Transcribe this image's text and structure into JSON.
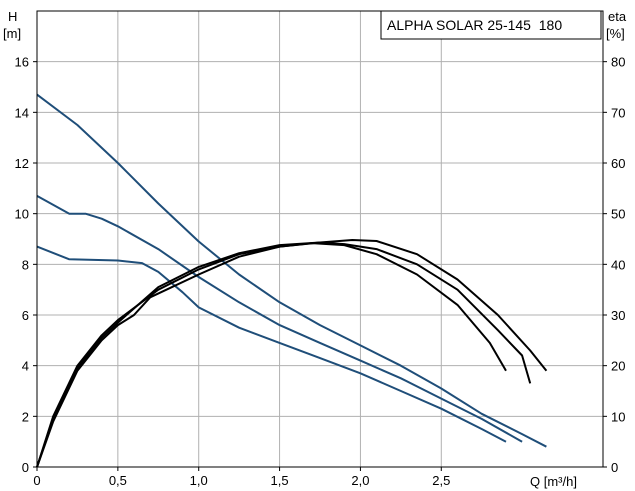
{
  "chart_data": {
    "type": "line",
    "title": "ALPHA SOLAR 25-145  180",
    "left_axis": {
      "label_line1": "H",
      "label_line2": "[m]",
      "range": [
        0,
        18
      ],
      "ticks": [
        0,
        2,
        4,
        6,
        8,
        10,
        12,
        14,
        16
      ]
    },
    "right_axis": {
      "label_line1": "eta",
      "label_line2": "[%]",
      "range": [
        0,
        90
      ],
      "ticks": [
        0,
        10,
        20,
        30,
        40,
        50,
        60,
        70,
        80
      ]
    },
    "x_axis": {
      "label": "Q [m³/h]",
      "range": [
        0,
        3.5
      ],
      "ticks": [
        0,
        0.5,
        1.0,
        1.5,
        2.0,
        2.5
      ],
      "tick_labels": [
        "0",
        "0,5",
        "1,0",
        "1,5",
        "2,0",
        "2,5"
      ]
    },
    "grid": true,
    "colors": {
      "head_curves": "#1f4e79",
      "efficiency_curves": "#000000",
      "grid": "#b0b0b0"
    },
    "head_series": [
      {
        "axis": "left",
        "points": [
          [
            0,
            14.7
          ],
          [
            0.25,
            13.5
          ],
          [
            0.5,
            12.0
          ],
          [
            0.75,
            10.4
          ],
          [
            1.0,
            8.9
          ],
          [
            1.25,
            7.6
          ],
          [
            1.5,
            6.5
          ],
          [
            1.75,
            5.6
          ],
          [
            2.0,
            4.8
          ],
          [
            2.25,
            4.0
          ],
          [
            2.5,
            3.1
          ],
          [
            2.75,
            2.1
          ],
          [
            3.0,
            1.3
          ],
          [
            3.15,
            0.8
          ]
        ]
      },
      {
        "axis": "left",
        "points": [
          [
            0,
            10.7
          ],
          [
            0.2,
            10.0
          ],
          [
            0.3,
            10.0
          ],
          [
            0.4,
            9.8
          ],
          [
            0.5,
            9.5
          ],
          [
            0.75,
            8.6
          ],
          [
            1.0,
            7.5
          ],
          [
            1.25,
            6.5
          ],
          [
            1.5,
            5.6
          ],
          [
            1.75,
            4.9
          ],
          [
            2.0,
            4.2
          ],
          [
            2.25,
            3.5
          ],
          [
            2.5,
            2.7
          ],
          [
            2.75,
            1.9
          ],
          [
            3.0,
            1.0
          ]
        ]
      },
      {
        "axis": "left",
        "points": [
          [
            0,
            8.7
          ],
          [
            0.2,
            8.2
          ],
          [
            0.5,
            8.15
          ],
          [
            0.65,
            8.05
          ],
          [
            0.75,
            7.7
          ],
          [
            0.9,
            6.9
          ],
          [
            1.0,
            6.3
          ],
          [
            1.25,
            5.5
          ],
          [
            1.5,
            4.9
          ],
          [
            1.75,
            4.3
          ],
          [
            2.0,
            3.7
          ],
          [
            2.25,
            3.0
          ],
          [
            2.5,
            2.3
          ],
          [
            2.75,
            1.5
          ],
          [
            2.9,
            1.0
          ]
        ]
      }
    ],
    "efficiency_series": [
      {
        "axis": "right",
        "points": [
          [
            0,
            0
          ],
          [
            0.1,
            10
          ],
          [
            0.25,
            20
          ],
          [
            0.4,
            26
          ],
          [
            0.5,
            29
          ],
          [
            0.75,
            35
          ],
          [
            1.0,
            39
          ],
          [
            1.25,
            42
          ],
          [
            1.5,
            43.5
          ],
          [
            1.75,
            44.3
          ],
          [
            1.95,
            44.8
          ],
          [
            2.1,
            44.6
          ],
          [
            2.35,
            42
          ],
          [
            2.6,
            37
          ],
          [
            2.85,
            30
          ],
          [
            3.05,
            23
          ],
          [
            3.15,
            19
          ]
        ]
      },
      {
        "axis": "right",
        "points": [
          [
            0,
            0
          ],
          [
            0.1,
            9.5
          ],
          [
            0.25,
            19.5
          ],
          [
            0.4,
            25.5
          ],
          [
            0.5,
            28.5
          ],
          [
            0.75,
            35.5
          ],
          [
            1.0,
            39.5
          ],
          [
            1.25,
            42.2
          ],
          [
            1.5,
            43.8
          ],
          [
            1.75,
            44.3
          ],
          [
            1.9,
            44.0
          ],
          [
            2.1,
            43
          ],
          [
            2.35,
            40
          ],
          [
            2.6,
            35
          ],
          [
            2.85,
            27
          ],
          [
            3.0,
            22
          ],
          [
            3.05,
            16.5
          ]
        ]
      },
      {
        "axis": "right",
        "points": [
          [
            0,
            0
          ],
          [
            0.1,
            9
          ],
          [
            0.25,
            19
          ],
          [
            0.4,
            25
          ],
          [
            0.5,
            28
          ],
          [
            0.6,
            30
          ],
          [
            0.7,
            33.5
          ],
          [
            0.8,
            35
          ],
          [
            1.0,
            38
          ],
          [
            1.25,
            41.5
          ],
          [
            1.5,
            43.5
          ],
          [
            1.7,
            44.2
          ],
          [
            1.9,
            43.8
          ],
          [
            2.1,
            42
          ],
          [
            2.35,
            38
          ],
          [
            2.6,
            32
          ],
          [
            2.8,
            24.5
          ],
          [
            2.9,
            19
          ]
        ]
      }
    ]
  }
}
